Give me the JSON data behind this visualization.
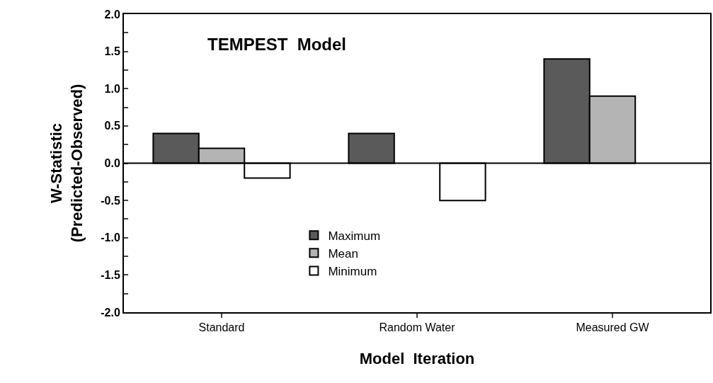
{
  "chart_data": {
    "type": "bar",
    "title": "TEMPEST  Model",
    "xlabel": "Model  Iteration",
    "ylabel": "W-Statistic\n(Predicted-Observed)",
    "categories": [
      "Standard",
      "Random Water",
      "Measured GW"
    ],
    "series": [
      {
        "name": "Maximum",
        "color": "#5a5a5a",
        "values": [
          0.4,
          0.4,
          1.4
        ]
      },
      {
        "name": "Mean",
        "color": "#b4b4b4",
        "values": [
          0.2,
          null,
          0.9
        ]
      },
      {
        "name": "Minimum",
        "color": "#ffffff",
        "values": [
          -0.2,
          -0.5,
          null
        ]
      }
    ],
    "ylim": [
      -2.0,
      2.0
    ],
    "yticks": [
      {
        "value": -2,
        "label": "-2.0"
      },
      {
        "value": -1.75,
        "label": null
      },
      {
        "value": -1.5,
        "label": "-1.5"
      },
      {
        "value": -1.25,
        "label": null
      },
      {
        "value": -1,
        "label": "-1.0"
      },
      {
        "value": -0.75,
        "label": null
      },
      {
        "value": -0.5,
        "label": "-0.5"
      },
      {
        "value": -0.25,
        "label": null
      },
      {
        "value": 0,
        "label": "0.0"
      },
      {
        "value": 0.25,
        "label": null
      },
      {
        "value": 0.5,
        "label": "0.5"
      },
      {
        "value": 0.75,
        "label": null
      },
      {
        "value": 1,
        "label": "1.0"
      },
      {
        "value": 1.25,
        "label": null
      },
      {
        "value": 1.5,
        "label": "1.5"
      },
      {
        "value": 1.75,
        "label": null
      },
      {
        "value": 2,
        "label": "2.0"
      }
    ],
    "ref_lines": [
      {
        "axis": "y",
        "value": 0
      }
    ],
    "legend": "bottom"
  }
}
